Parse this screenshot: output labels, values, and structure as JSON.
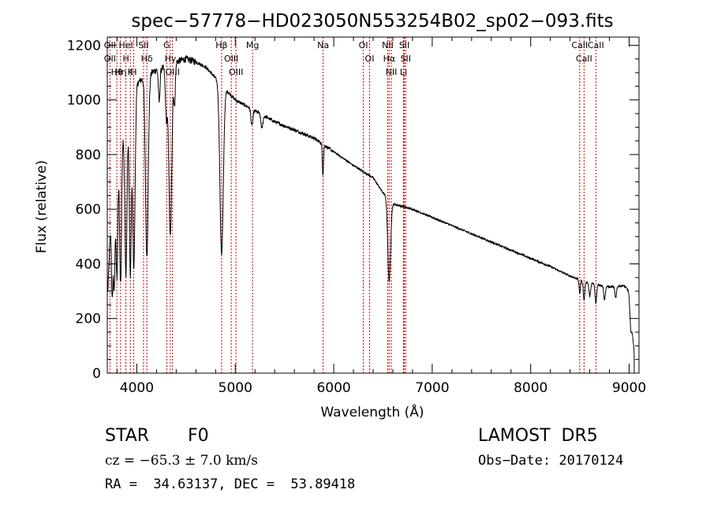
{
  "chart_data": {
    "type": "line",
    "title": "spec−57778−HD023050N553254B02_sp02−093.fits",
    "xlabel": "Wavelength (Å)",
    "ylabel": "Flux (relative)",
    "xlim": [
      3700,
      9100
    ],
    "ylim": [
      0,
      1230
    ],
    "xticks": [
      4000,
      5000,
      6000,
      7000,
      8000,
      9000
    ],
    "yticks": [
      0,
      200,
      400,
      600,
      800,
      1000,
      1200
    ],
    "grid": false,
    "continuum": [
      [
        3700,
        250
      ],
      [
        3740,
        600
      ],
      [
        3800,
        780
      ],
      [
        3850,
        880
      ],
      [
        3900,
        930
      ],
      [
        3950,
        1000
      ],
      [
        4000,
        1060
      ],
      [
        4100,
        1090
      ],
      [
        4200,
        1110
      ],
      [
        4300,
        1120
      ],
      [
        4400,
        1140
      ],
      [
        4500,
        1150
      ],
      [
        4600,
        1140
      ],
      [
        4700,
        1120
      ],
      [
        4800,
        1080
      ],
      [
        4900,
        1040
      ],
      [
        5000,
        1000
      ],
      [
        5200,
        960
      ],
      [
        5400,
        920
      ],
      [
        5600,
        890
      ],
      [
        5800,
        860
      ],
      [
        6000,
        810
      ],
      [
        6200,
        760
      ],
      [
        6400,
        715
      ],
      [
        6500,
        660
      ],
      [
        6600,
        620
      ],
      [
        6800,
        600
      ],
      [
        7000,
        570
      ],
      [
        7200,
        540
      ],
      [
        7400,
        510
      ],
      [
        7600,
        480
      ],
      [
        7800,
        450
      ],
      [
        8000,
        420
      ],
      [
        8200,
        390
      ],
      [
        8400,
        355
      ],
      [
        8600,
        330
      ],
      [
        8800,
        315
      ],
      [
        8950,
        320
      ],
      [
        9000,
        300
      ],
      [
        9050,
        80
      ]
    ],
    "absorption": [
      {
        "wl": 3750,
        "depth": 350,
        "width": 8
      },
      {
        "wl": 3771,
        "depth": 380,
        "width": 8
      },
      {
        "wl": 3798,
        "depth": 430,
        "width": 9
      },
      {
        "wl": 3835,
        "depth": 520,
        "width": 10
      },
      {
        "wl": 3889,
        "depth": 560,
        "width": 11
      },
      {
        "wl": 3934,
        "depth": 620,
        "width": 10
      },
      {
        "wl": 3970,
        "depth": 640,
        "width": 12
      },
      {
        "wl": 4102,
        "depth": 660,
        "width": 14
      },
      {
        "wl": 4227,
        "depth": 120,
        "width": 8
      },
      {
        "wl": 4300,
        "depth": 180,
        "width": 10
      },
      {
        "wl": 4340,
        "depth": 630,
        "width": 15
      },
      {
        "wl": 4383,
        "depth": 150,
        "width": 8
      },
      {
        "wl": 4861,
        "depth": 620,
        "width": 17
      },
      {
        "wl": 5169,
        "depth": 60,
        "width": 10
      },
      {
        "wl": 5270,
        "depth": 50,
        "width": 10
      },
      {
        "wl": 5890,
        "depth": 110,
        "width": 6
      },
      {
        "wl": 6563,
        "depth": 300,
        "width": 14
      },
      {
        "wl": 8498,
        "depth": 50,
        "width": 7
      },
      {
        "wl": 8542,
        "depth": 70,
        "width": 8
      },
      {
        "wl": 8600,
        "depth": 50,
        "width": 8
      },
      {
        "wl": 8662,
        "depth": 70,
        "width": 8
      },
      {
        "wl": 8750,
        "depth": 50,
        "width": 8
      },
      {
        "wl": 8863,
        "depth": 40,
        "width": 8
      },
      {
        "wl": 9015,
        "depth": 70,
        "width": 10
      }
    ],
    "line_markers": [
      {
        "wl": 3727,
        "labels": [
          "OII",
          "OII"
        ]
      },
      {
        "wl": 3797,
        "labels": [
          "Hθ"
        ]
      },
      {
        "wl": 3835,
        "labels": [
          "Hη"
        ]
      },
      {
        "wl": 3889,
        "labels": [
          "HeI",
          "H"
        ]
      },
      {
        "wl": 3934,
        "labels": [
          "K"
        ]
      },
      {
        "wl": 3968,
        "labels": [
          "H"
        ]
      },
      {
        "wl": 4068,
        "labels": [
          "SII"
        ]
      },
      {
        "wl": 4102,
        "labels": [
          "Hδ"
        ]
      },
      {
        "wl": 4304,
        "labels": [
          "G"
        ]
      },
      {
        "wl": 4340,
        "labels": [
          "Hγ"
        ]
      },
      {
        "wl": 4363,
        "labels": [
          "OIII"
        ]
      },
      {
        "wl": 4861,
        "labels": [
          "Hβ"
        ]
      },
      {
        "wl": 4959,
        "labels": [
          "OIII"
        ]
      },
      {
        "wl": 5007,
        "labels": [
          "OIII"
        ]
      },
      {
        "wl": 5175,
        "labels": [
          "Mg"
        ]
      },
      {
        "wl": 5892,
        "labels": [
          "Na"
        ]
      },
      {
        "wl": 6300,
        "labels": [
          "OI"
        ]
      },
      {
        "wl": 6364,
        "labels": [
          "OI"
        ]
      },
      {
        "wl": 6548,
        "labels": [
          "NII"
        ]
      },
      {
        "wl": 6563,
        "labels": [
          "Hα"
        ]
      },
      {
        "wl": 6584,
        "labels": [
          "NII"
        ]
      },
      {
        "wl": 6708,
        "labels": [
          "Li"
        ]
      },
      {
        "wl": 6717,
        "labels": [
          "SII"
        ]
      },
      {
        "wl": 6731,
        "labels": [
          "SII"
        ]
      },
      {
        "wl": 8498,
        "labels": [
          "CaII"
        ]
      },
      {
        "wl": 8542,
        "labels": [
          "CaII"
        ]
      },
      {
        "wl": 8662,
        "labels": [
          "CaII"
        ]
      }
    ],
    "colors": {
      "spectrum": "#000000",
      "markers": "#cc0000",
      "labels": "#000000"
    }
  },
  "info": {
    "object_class": "STAR",
    "subclass": "F0",
    "survey": "LAMOST  DR5",
    "cz": "cz = −65.3 ± 7.0 km/s",
    "obs_date": "Obs−Date: 20170124",
    "coords": "RA =  34.63137, DEC =  53.89418"
  }
}
